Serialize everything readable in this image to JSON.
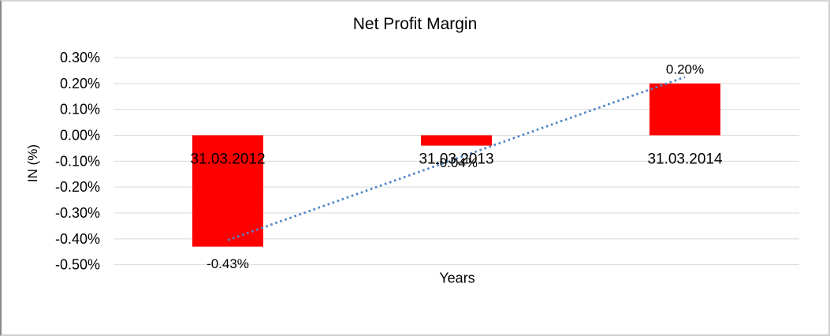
{
  "chart_data": {
    "type": "bar",
    "title": "Net Profit Margin",
    "xlabel": "Years",
    "ylabel": "IN (%)",
    "categories": [
      "31.03.2012",
      "31.03.2013",
      "31.03.2014"
    ],
    "values": [
      -0.43,
      -0.04,
      0.2
    ],
    "data_labels": [
      "-0.43%",
      "-0.04%",
      "0.20%"
    ],
    "yticks": [
      {
        "value": 0.3,
        "label": "0.30%"
      },
      {
        "value": 0.2,
        "label": "0.20%"
      },
      {
        "value": 0.1,
        "label": "0.10%"
      },
      {
        "value": 0.0,
        "label": "0.00%"
      },
      {
        "value": -0.1,
        "label": "-0.10%"
      },
      {
        "value": -0.2,
        "label": "-0.20%"
      },
      {
        "value": -0.3,
        "label": "-0.30%"
      },
      {
        "value": -0.4,
        "label": "-0.40%"
      },
      {
        "value": -0.5,
        "label": "-0.50%"
      }
    ],
    "ylim": [
      -0.5,
      0.3
    ],
    "grid": true,
    "legend": "none",
    "bar_color": "#FF0000",
    "gridline_color": "#D9D9D9",
    "text_color": "#000000",
    "trendline": {
      "type": "linear",
      "style": "dotted",
      "color": "#4F86C6",
      "endpoints_pct": [
        -0.405,
        0.225
      ]
    }
  }
}
